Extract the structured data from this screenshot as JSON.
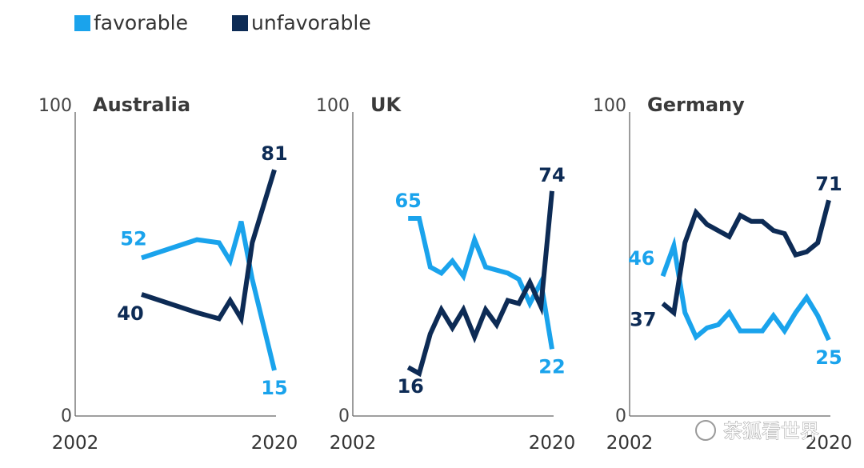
{
  "legend": {
    "favorable": {
      "label": "favorable",
      "color": "#1aa3ec"
    },
    "unfavorable": {
      "label": "unfavorable",
      "color": "#0d2b55"
    }
  },
  "watermark": {
    "text": "茶狐看世界"
  },
  "chart_data": [
    {
      "type": "line",
      "title": "Australia",
      "ylim": [
        0,
        100
      ],
      "y_ticks": [
        "100",
        "0"
      ],
      "x_ticks": [
        "2002",
        "2020"
      ],
      "xlim": [
        2002,
        2020
      ],
      "series": [
        {
          "name": "favorable",
          "color": "#1aa3ec",
          "x": [
            2008,
            2013,
            2015,
            2016,
            2017,
            2018,
            2020
          ],
          "values": [
            52,
            58,
            57,
            51,
            64,
            45,
            15
          ],
          "start_label": "52",
          "end_label": "15"
        },
        {
          "name": "unfavorable",
          "color": "#0d2b55",
          "x": [
            2008,
            2013,
            2015,
            2016,
            2017,
            2018,
            2020
          ],
          "values": [
            40,
            34,
            32,
            38,
            32,
            57,
            81
          ],
          "start_label": "40",
          "end_label": "81"
        }
      ]
    },
    {
      "type": "line",
      "title": "UK",
      "ylim": [
        0,
        100
      ],
      "y_ticks": [
        "100",
        "0"
      ],
      "x_ticks": [
        "2002",
        "2020"
      ],
      "xlim": [
        2002,
        2020
      ],
      "series": [
        {
          "name": "favorable",
          "color": "#1aa3ec",
          "x": [
            2007,
            2008,
            2009,
            2010,
            2011,
            2012,
            2013,
            2014,
            2015,
            2016,
            2017,
            2018,
            2019,
            2020
          ],
          "values": [
            65,
            65,
            49,
            47,
            51,
            46,
            58,
            49,
            48,
            47,
            45,
            37,
            44,
            22
          ],
          "start_label": "65",
          "end_label": "22"
        },
        {
          "name": "unfavorable",
          "color": "#0d2b55",
          "x": [
            2007,
            2008,
            2009,
            2010,
            2011,
            2012,
            2013,
            2014,
            2015,
            2016,
            2017,
            2018,
            2019,
            2020
          ],
          "values": [
            16,
            14,
            27,
            35,
            29,
            35,
            26,
            35,
            30,
            38,
            37,
            44,
            36,
            74
          ],
          "start_label": "16",
          "end_label": "74"
        }
      ]
    },
    {
      "type": "line",
      "title": "Germany",
      "ylim": [
        0,
        100
      ],
      "y_ticks": [
        "100",
        "0"
      ],
      "x_ticks": [
        "2002",
        "2020"
      ],
      "xlim": [
        2002,
        2020
      ],
      "series": [
        {
          "name": "favorable",
          "color": "#1aa3ec",
          "x": [
            2005,
            2006,
            2007,
            2008,
            2009,
            2010,
            2011,
            2012,
            2013,
            2014,
            2015,
            2016,
            2017,
            2018,
            2019,
            2020
          ],
          "values": [
            46,
            56,
            34,
            26,
            29,
            30,
            34,
            28,
            28,
            28,
            33,
            28,
            34,
            39,
            33,
            25
          ],
          "start_label": "46",
          "end_label": "25"
        },
        {
          "name": "unfavorable",
          "color": "#0d2b55",
          "x": [
            2005,
            2006,
            2007,
            2008,
            2009,
            2010,
            2011,
            2012,
            2013,
            2014,
            2015,
            2016,
            2017,
            2018,
            2019,
            2020
          ],
          "values": [
            37,
            34,
            57,
            67,
            63,
            61,
            59,
            66,
            64,
            64,
            61,
            60,
            53,
            54,
            57,
            71
          ],
          "start_label": "37",
          "end_label": "71"
        }
      ]
    }
  ]
}
